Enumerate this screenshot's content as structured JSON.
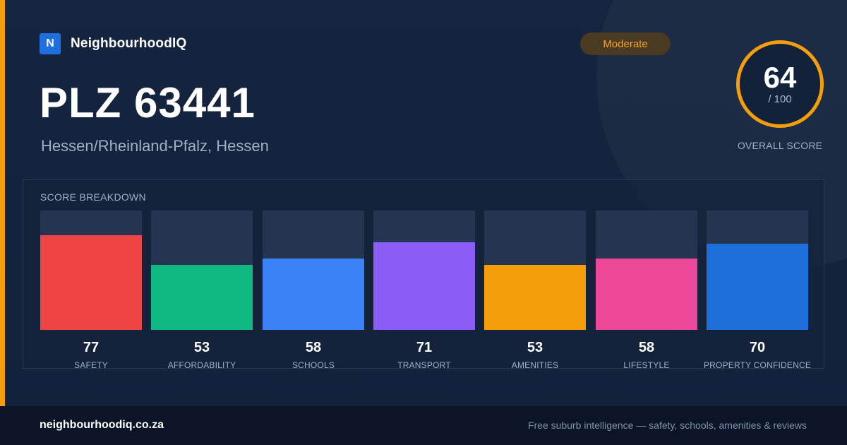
{
  "brand": {
    "logo_letter": "N",
    "name": "NeighbourhoodIQ"
  },
  "header": {
    "title": "PLZ 63441",
    "subtitle": "Hessen/Rheinland-Pfalz, Hessen",
    "badge": "Moderate"
  },
  "overall": {
    "score": "64",
    "max": "/ 100",
    "label": "OVERALL SCORE",
    "fraction": 0.64,
    "ring_color": "#f59e0b"
  },
  "breakdown": {
    "title": "SCORE BREAKDOWN",
    "items": [
      {
        "value": "77",
        "label": "SAFETY",
        "score": 77,
        "color": "#ef4444"
      },
      {
        "value": "53",
        "label": "AFFORDABILITY",
        "score": 53,
        "color": "#10b981"
      },
      {
        "value": "58",
        "label": "SCHOOLS",
        "score": 58,
        "color": "#3b82f6"
      },
      {
        "value": "71",
        "label": "TRANSPORT",
        "score": 71,
        "color": "#8b5cf6"
      },
      {
        "value": "53",
        "label": "AMENITIES",
        "score": 53,
        "color": "#f59e0b"
      },
      {
        "value": "58",
        "label": "LIFESTYLE",
        "score": 58,
        "color": "#ec4899"
      },
      {
        "value": "70",
        "label": "PROPERTY CONFIDENCE",
        "score": 70,
        "color": "#1d6fdc"
      }
    ]
  },
  "footer": {
    "url": "neighbourhoodiq.co.za",
    "tagline": "Free suburb intelligence — safety, schools, amenities & reviews"
  },
  "colors": {
    "accent": "#f59e0b",
    "background": "#13223b",
    "brand": "#1f6fde"
  }
}
